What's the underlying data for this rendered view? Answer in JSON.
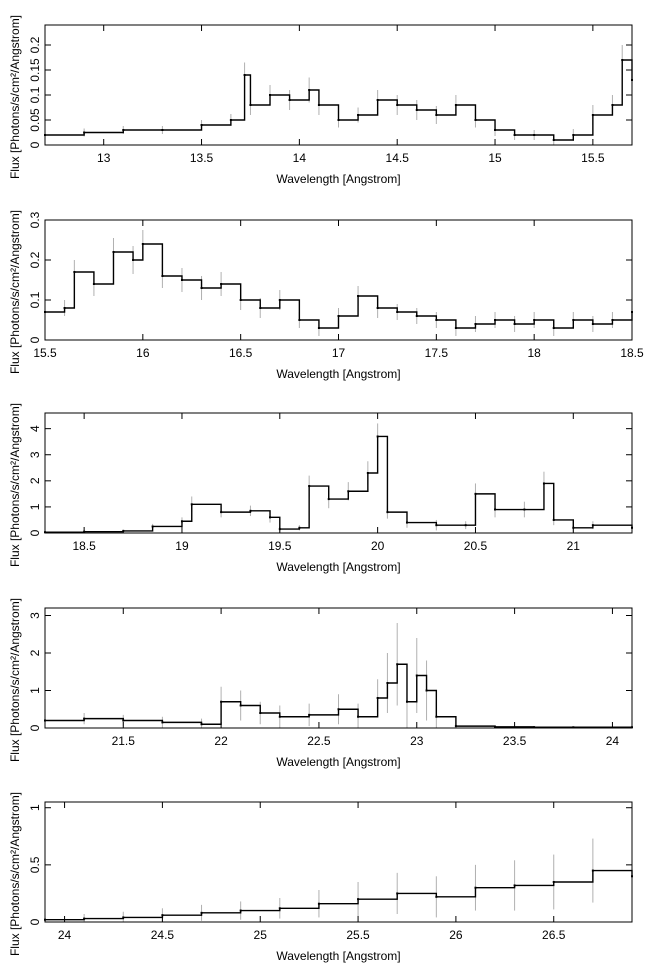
{
  "chart_data": [
    {
      "type": "line",
      "xlabel": "Wavelength [Angstrom]",
      "ylabel": "Flux [Photons/s/cm²/Angstrom]",
      "xlim": [
        12.7,
        15.7
      ],
      "ylim": [
        0,
        0.24
      ],
      "xticks": [
        13,
        13.5,
        14,
        14.5,
        15,
        15.5
      ],
      "xtick_labels": [
        "13",
        "13.5",
        "14",
        "14.5",
        "15",
        "15.5"
      ],
      "yticks": [
        0,
        0.05,
        0.1,
        0.15,
        0.2
      ],
      "ytick_labels": [
        "0",
        "0.05",
        "0.1",
        "0.15",
        "0.2"
      ],
      "series": [
        {
          "x": [
            12.7,
            12.9,
            13.1,
            13.3,
            13.5,
            13.65,
            13.72,
            13.75,
            13.85,
            13.95,
            14.05,
            14.1,
            14.2,
            14.3,
            14.4,
            14.5,
            14.6,
            14.7,
            14.8,
            14.9,
            15.0,
            15.1,
            15.2,
            15.3,
            15.4,
            15.5,
            15.6,
            15.65,
            15.7
          ],
          "y": [
            0.02,
            0.025,
            0.03,
            0.03,
            0.04,
            0.05,
            0.14,
            0.08,
            0.1,
            0.09,
            0.11,
            0.08,
            0.05,
            0.06,
            0.09,
            0.08,
            0.07,
            0.06,
            0.08,
            0.05,
            0.03,
            0.02,
            0.02,
            0.01,
            0.02,
            0.06,
            0.08,
            0.17,
            0.13
          ],
          "err": [
            0.008,
            0.008,
            0.008,
            0.008,
            0.01,
            0.012,
            0.025,
            0.02,
            0.02,
            0.02,
            0.025,
            0.02,
            0.015,
            0.015,
            0.02,
            0.02,
            0.02,
            0.018,
            0.02,
            0.015,
            0.012,
            0.01,
            0.01,
            0.01,
            0.012,
            0.02,
            0.02,
            0.03,
            0.03
          ]
        }
      ]
    },
    {
      "type": "line",
      "xlabel": "Wavelength [Angstrom]",
      "ylabel": "Flux [Photons/s/cm²/Angstrom]",
      "xlim": [
        15.5,
        18.5
      ],
      "ylim": [
        0,
        0.3
      ],
      "xticks": [
        15.5,
        16,
        16.5,
        17,
        17.5,
        18,
        18.5
      ],
      "xtick_labels": [
        "15.5",
        "16",
        "16.5",
        "17",
        "17.5",
        "18",
        "18.5"
      ],
      "yticks": [
        0,
        0.1,
        0.2,
        0.3
      ],
      "ytick_labels": [
        "0",
        "0.1",
        "0.2",
        "0.3"
      ],
      "series": [
        {
          "x": [
            15.5,
            15.6,
            15.65,
            15.75,
            15.85,
            15.95,
            16.0,
            16.1,
            16.2,
            16.3,
            16.4,
            16.5,
            16.6,
            16.7,
            16.8,
            16.9,
            17.0,
            17.1,
            17.2,
            17.3,
            17.4,
            17.5,
            17.6,
            17.7,
            17.8,
            17.9,
            18.0,
            18.1,
            18.2,
            18.3,
            18.4,
            18.5
          ],
          "y": [
            0.07,
            0.08,
            0.17,
            0.14,
            0.22,
            0.2,
            0.24,
            0.16,
            0.15,
            0.13,
            0.14,
            0.1,
            0.08,
            0.1,
            0.05,
            0.03,
            0.06,
            0.11,
            0.08,
            0.07,
            0.06,
            0.05,
            0.03,
            0.04,
            0.05,
            0.04,
            0.05,
            0.03,
            0.05,
            0.04,
            0.05,
            0.07
          ],
          "err": [
            0.02,
            0.02,
            0.03,
            0.03,
            0.035,
            0.035,
            0.035,
            0.03,
            0.03,
            0.03,
            0.03,
            0.025,
            0.025,
            0.025,
            0.02,
            0.02,
            0.02,
            0.025,
            0.025,
            0.02,
            0.02,
            0.02,
            0.02,
            0.02,
            0.02,
            0.02,
            0.02,
            0.02,
            0.02,
            0.02,
            0.02,
            0.025
          ]
        }
      ]
    },
    {
      "type": "line",
      "xlabel": "Wavelength [Angstrom]",
      "ylabel": "Flux [Photons/s/cm²/Angstrom]",
      "xlim": [
        18.3,
        21.3
      ],
      "ylim": [
        0,
        4.6
      ],
      "xticks": [
        18.5,
        19,
        19.5,
        20,
        20.5,
        21
      ],
      "xtick_labels": [
        "18.5",
        "19",
        "19.5",
        "20",
        "20.5",
        "21"
      ],
      "yticks": [
        0,
        1,
        2,
        3,
        4
      ],
      "ytick_labels": [
        "0",
        "1",
        "2",
        "3",
        "4"
      ],
      "series": [
        {
          "x": [
            18.3,
            18.5,
            18.7,
            18.85,
            19.0,
            19.05,
            19.2,
            19.35,
            19.45,
            19.5,
            19.6,
            19.65,
            19.75,
            19.85,
            19.95,
            20.0,
            20.05,
            20.15,
            20.3,
            20.45,
            20.5,
            20.6,
            20.75,
            20.85,
            20.9,
            21.0,
            21.1,
            21.3
          ],
          "y": [
            0.03,
            0.05,
            0.08,
            0.25,
            0.45,
            1.1,
            0.8,
            0.85,
            0.6,
            0.15,
            0.2,
            1.8,
            1.3,
            1.6,
            2.3,
            3.7,
            0.8,
            0.4,
            0.3,
            0.3,
            1.5,
            0.9,
            0.9,
            1.9,
            0.5,
            0.2,
            0.3,
            0.2
          ],
          "err": [
            0.05,
            0.05,
            0.05,
            0.1,
            0.15,
            0.3,
            0.2,
            0.2,
            0.2,
            0.1,
            0.1,
            0.4,
            0.35,
            0.35,
            0.45,
            0.5,
            0.25,
            0.2,
            0.2,
            0.15,
            0.4,
            0.3,
            0.3,
            0.45,
            0.2,
            0.15,
            0.15,
            0.15
          ]
        }
      ]
    },
    {
      "type": "line",
      "xlabel": "Wavelength [Angstrom]",
      "ylabel": "Flux [Photons/s/cm²/Angstrom]",
      "xlim": [
        21.1,
        24.1
      ],
      "ylim": [
        0,
        3.2
      ],
      "xticks": [
        21.5,
        22,
        22.5,
        23,
        23.5,
        24
      ],
      "xtick_labels": [
        "21.5",
        "22",
        "22.5",
        "23",
        "23.5",
        "24"
      ],
      "yticks": [
        0,
        1,
        2,
        3
      ],
      "ytick_labels": [
        "0",
        "1",
        "2",
        "3"
      ],
      "series": [
        {
          "x": [
            21.1,
            21.3,
            21.5,
            21.7,
            21.9,
            22.0,
            22.1,
            22.2,
            22.3,
            22.45,
            22.6,
            22.7,
            22.8,
            22.85,
            22.9,
            22.95,
            23.0,
            23.05,
            23.1,
            23.2,
            23.4,
            23.6,
            23.8,
            24.1
          ],
          "y": [
            0.2,
            0.25,
            0.2,
            0.15,
            0.1,
            0.7,
            0.6,
            0.4,
            0.3,
            0.35,
            0.5,
            0.3,
            0.8,
            1.2,
            1.7,
            0.7,
            1.4,
            1.0,
            0.3,
            0.05,
            0.03,
            0.02,
            0.02,
            0.02
          ],
          "err": [
            0.15,
            0.15,
            0.15,
            0.15,
            0.15,
            0.4,
            0.4,
            0.3,
            0.3,
            0.3,
            0.4,
            0.35,
            0.5,
            0.8,
            1.1,
            0.7,
            1.0,
            0.8,
            0.4,
            0.05,
            0.03,
            0.02,
            0.02,
            0.02
          ]
        }
      ]
    },
    {
      "type": "line",
      "xlabel": "Wavelength [Angstrom]",
      "ylabel": "Flux [Photons/s/cm²/Angstrom]",
      "xlim": [
        23.9,
        26.9
      ],
      "ylim": [
        0,
        1.05
      ],
      "xticks": [
        24,
        24.5,
        25,
        25.5,
        26,
        26.5
      ],
      "xtick_labels": [
        "24",
        "24.5",
        "25",
        "25.5",
        "26",
        "26.5"
      ],
      "yticks": [
        0,
        0.5,
        1
      ],
      "ytick_labels": [
        "0",
        "0.5",
        "1"
      ],
      "series": [
        {
          "x": [
            23.9,
            24.1,
            24.3,
            24.5,
            24.7,
            24.9,
            25.1,
            25.3,
            25.5,
            25.7,
            25.9,
            26.1,
            26.3,
            26.5,
            26.7,
            26.9
          ],
          "y": [
            0.02,
            0.03,
            0.04,
            0.06,
            0.08,
            0.1,
            0.12,
            0.16,
            0.2,
            0.25,
            0.22,
            0.3,
            0.32,
            0.35,
            0.45,
            0.4
          ],
          "err": [
            0.03,
            0.04,
            0.05,
            0.06,
            0.07,
            0.08,
            0.09,
            0.12,
            0.15,
            0.18,
            0.18,
            0.2,
            0.22,
            0.24,
            0.28,
            0.3
          ]
        }
      ]
    }
  ]
}
